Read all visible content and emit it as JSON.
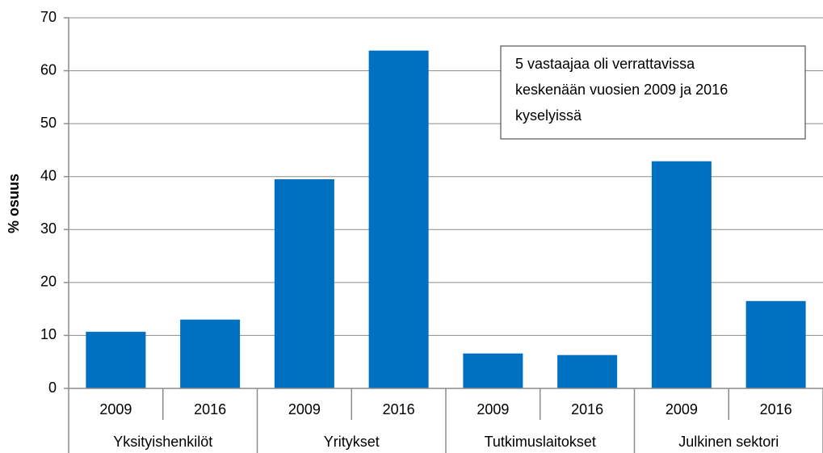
{
  "chart_data": {
    "type": "bar",
    "y_label": "% osuus",
    "categories": [
      "2009",
      "2016",
      "2009",
      "2016",
      "2009",
      "2016",
      "2009",
      "2016"
    ],
    "groups": [
      "Yksityishenkilöt",
      "Yritykset",
      "Tutkimuslaitokset",
      "Julkinen sektori"
    ],
    "values": [
      10.7,
      13.0,
      39.5,
      63.8,
      6.6,
      6.3,
      42.9,
      16.5
    ],
    "color": "#0070c0",
    "ylim": [
      0,
      70
    ],
    "yticks": [
      0,
      10,
      20,
      30,
      40,
      50,
      60,
      70
    ],
    "grid": true,
    "annotation": [
      "5 vastaajaa oli verrattavissa",
      "keskenään vuosien 2009 ja 2016",
      "kyselyissä"
    ]
  }
}
